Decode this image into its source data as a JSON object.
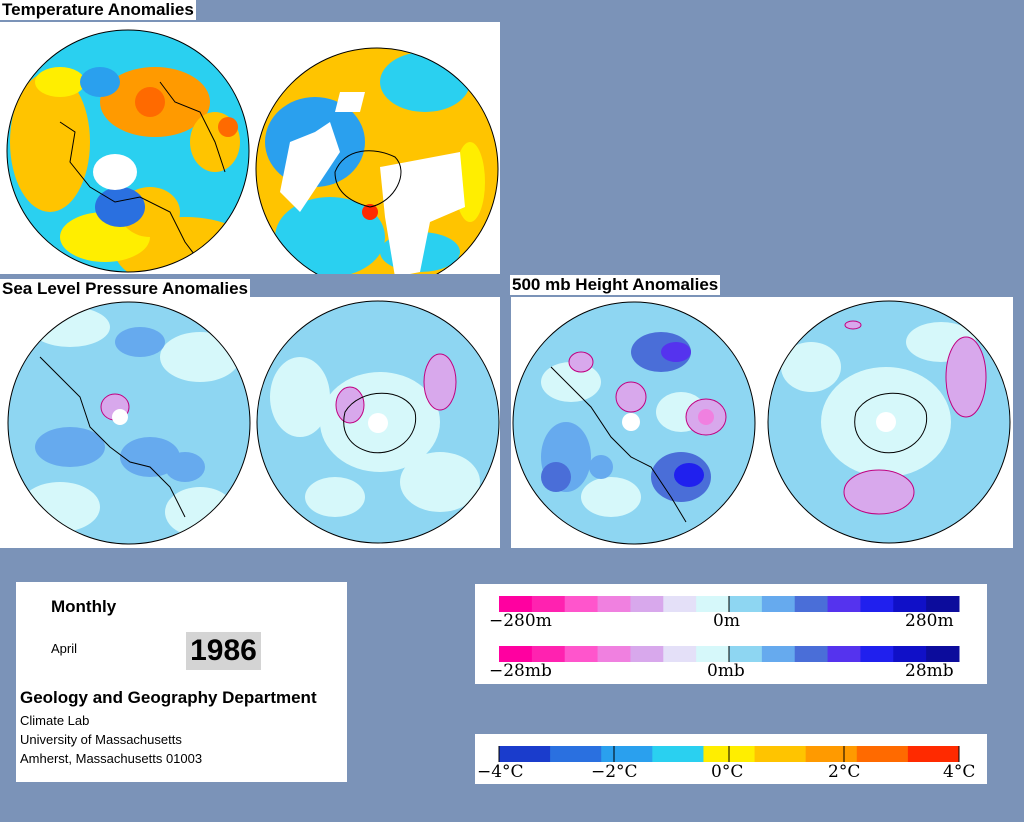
{
  "titles": {
    "temperature": "Temperature Anomalies",
    "slp": "Sea Level Pressure Anomalies",
    "height": "500 mb Height Anomalies"
  },
  "info": {
    "period": "Monthly",
    "month": "April",
    "year": "1986",
    "department": "Geology and Geography Department",
    "lab": "Climate Lab",
    "university": "University of Massachusetts",
    "address": "Amherst, Massachusetts 01003"
  },
  "legends": {
    "height": {
      "left": "−280m",
      "center": "0m",
      "right": "280m"
    },
    "pressure": {
      "left": "−28mb",
      "center": "0mb",
      "right": "28mb"
    },
    "temperature": {
      "labels": [
        "−4°C",
        "−2°C",
        "0°C",
        "2°C",
        "4°C"
      ]
    }
  },
  "colors": {
    "background": "#7b93b8",
    "anomaly_scale": [
      "#ff00a0",
      "#ff22b0",
      "#ff55cc",
      "#f080e0",
      "#d8a8ec",
      "#e4e0f8",
      "#d6f8fa",
      "#8ed6f2",
      "#66aaee",
      "#4a6ed8",
      "#5533ee",
      "#2020ee",
      "#1010c8",
      "#0c0c9c"
    ],
    "temperature_scale": [
      "#1a3ccc",
      "#2a70e0",
      "#2aa0ee",
      "#2ad0f0",
      "#ffee00",
      "#ffc400",
      "#ff9a00",
      "#ff6a00",
      "#ff2a00"
    ],
    "pressure_scale": [
      "#ff00a0",
      "#ff22b0",
      "#ff55cc",
      "#f080e0",
      "#d8a8ec",
      "#e4e0f8",
      "#d6f8fa",
      "#8ed6f2",
      "#66aaee",
      "#4a6ed8",
      "#5533ee",
      "#2020ee",
      "#1010c8",
      "#0c0c9c"
    ]
  },
  "maps": [
    {
      "id": "temp-nh",
      "field": "temperature",
      "hemisphere": "northern"
    },
    {
      "id": "temp-sh",
      "field": "temperature",
      "hemisphere": "southern"
    },
    {
      "id": "slp-nh",
      "field": "sea-level-pressure",
      "hemisphere": "northern"
    },
    {
      "id": "slp-sh",
      "field": "sea-level-pressure",
      "hemisphere": "southern"
    },
    {
      "id": "z500-nh",
      "field": "500mb-height",
      "hemisphere": "northern"
    },
    {
      "id": "z500-sh",
      "field": "500mb-height",
      "hemisphere": "southern"
    }
  ]
}
